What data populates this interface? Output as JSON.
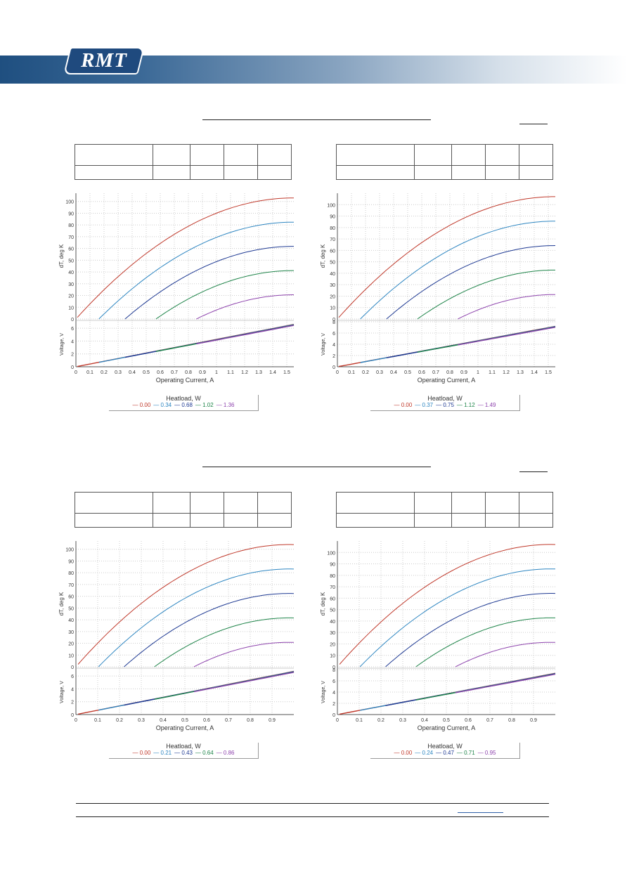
{
  "brand": {
    "logo_text": "RMT",
    "band_color": "#1f4f80"
  },
  "colors": {
    "grid": "#cccccc",
    "axis": "#555555"
  },
  "chart_data": [
    {
      "type": "line",
      "xlabel": "Operating Current, A",
      "ylabel_top": "dT, deg K",
      "ylabel_bottom": "Voltage, V",
      "xlim": [
        0,
        1.55
      ],
      "xticks": [
        0,
        0.1,
        0.2,
        0.3,
        0.4,
        0.5,
        0.6,
        0.7,
        0.8,
        0.9,
        1,
        1.1,
        1.2,
        1.3,
        1.4,
        1.5
      ],
      "top_ylim": [
        0,
        107
      ],
      "top_yticks": [
        0,
        10,
        20,
        30,
        40,
        50,
        60,
        70,
        80,
        90,
        100
      ],
      "bottom_ylim": [
        0,
        7
      ],
      "bottom_yticks": [
        0,
        2,
        4,
        6
      ],
      "legend_title": "Heatload, W",
      "imax": 1.55,
      "dtmax": 103,
      "vmax": 6.6,
      "series": [
        {
          "name": "0.00",
          "q": 0,
          "color": "#c0392b"
        },
        {
          "name": "0.34",
          "q": 0.2,
          "color": "#2e86c1"
        },
        {
          "name": "0.68",
          "q": 0.4,
          "color": "#1f3a93"
        },
        {
          "name": "1.02",
          "q": 0.6,
          "color": "#1e8449"
        },
        {
          "name": "1.36",
          "q": 0.8,
          "color": "#8e44ad"
        }
      ]
    },
    {
      "type": "line",
      "xlabel": "Operating Current, A",
      "ylabel_top": "dT, deg K",
      "ylabel_bottom": "Voltage, V",
      "xlim": [
        0,
        1.55
      ],
      "xticks": [
        0,
        0.1,
        0.2,
        0.3,
        0.4,
        0.5,
        0.6,
        0.7,
        0.8,
        0.9,
        1,
        1.1,
        1.2,
        1.3,
        1.4,
        1.5
      ],
      "top_ylim": [
        0,
        110
      ],
      "top_yticks": [
        0,
        10,
        20,
        30,
        40,
        50,
        60,
        70,
        80,
        90,
        100
      ],
      "bottom_ylim": [
        0,
        8
      ],
      "bottom_yticks": [
        0,
        2,
        4,
        6,
        8
      ],
      "legend_title": "Heatload, W",
      "imax": 1.55,
      "dtmax": 107,
      "vmax": 7.2,
      "series": [
        {
          "name": "0.00",
          "q": 0,
          "color": "#c0392b"
        },
        {
          "name": "0.37",
          "q": 0.2,
          "color": "#2e86c1"
        },
        {
          "name": "0.75",
          "q": 0.4,
          "color": "#1f3a93"
        },
        {
          "name": "1.12",
          "q": 0.6,
          "color": "#1e8449"
        },
        {
          "name": "1.49",
          "q": 0.8,
          "color": "#8e44ad"
        }
      ]
    },
    {
      "type": "line",
      "xlabel": "Operating Current, A",
      "ylabel_top": "dT, deg K",
      "ylabel_bottom": "Voltage, V",
      "xlim": [
        0,
        1.0
      ],
      "xticks": [
        0,
        0.1,
        0.2,
        0.3,
        0.4,
        0.5,
        0.6,
        0.7,
        0.8,
        0.9
      ],
      "top_ylim": [
        0,
        107
      ],
      "top_yticks": [
        0,
        10,
        20,
        30,
        40,
        50,
        60,
        70,
        80,
        90,
        100
      ],
      "bottom_ylim": [
        0,
        7
      ],
      "bottom_yticks": [
        0,
        2,
        4,
        6
      ],
      "legend_title": "Heatload, W",
      "imax": 0.98,
      "dtmax": 104,
      "vmax": 6.6,
      "series": [
        {
          "name": "0.00",
          "q": 0,
          "color": "#c0392b"
        },
        {
          "name": "0.21",
          "q": 0.2,
          "color": "#2e86c1"
        },
        {
          "name": "0.43",
          "q": 0.4,
          "color": "#1f3a93"
        },
        {
          "name": "0.64",
          "q": 0.6,
          "color": "#1e8449"
        },
        {
          "name": "0.86",
          "q": 0.8,
          "color": "#8e44ad"
        }
      ]
    },
    {
      "type": "line",
      "xlabel": "Operating Current, A",
      "ylabel_top": "dT, deg K",
      "ylabel_bottom": "Voltage, V",
      "xlim": [
        0,
        1.0
      ],
      "xticks": [
        0,
        0.1,
        0.2,
        0.3,
        0.4,
        0.5,
        0.6,
        0.7,
        0.8,
        0.9
      ],
      "top_ylim": [
        0,
        110
      ],
      "top_yticks": [
        0,
        10,
        20,
        30,
        40,
        50,
        60,
        70,
        80,
        90,
        100
      ],
      "bottom_ylim": [
        0,
        8
      ],
      "bottom_yticks": [
        0,
        2,
        4,
        6,
        8
      ],
      "legend_title": "Heatload, W",
      "imax": 0.98,
      "dtmax": 107,
      "vmax": 7.2,
      "series": [
        {
          "name": "0.00",
          "q": 0,
          "color": "#c0392b"
        },
        {
          "name": "0.24",
          "q": 0.2,
          "color": "#2e86c1"
        },
        {
          "name": "0.47",
          "q": 0.4,
          "color": "#1f3a93"
        },
        {
          "name": "0.71",
          "q": 0.6,
          "color": "#1e8449"
        },
        {
          "name": "0.95",
          "q": 0.8,
          "color": "#8e44ad"
        }
      ]
    }
  ]
}
